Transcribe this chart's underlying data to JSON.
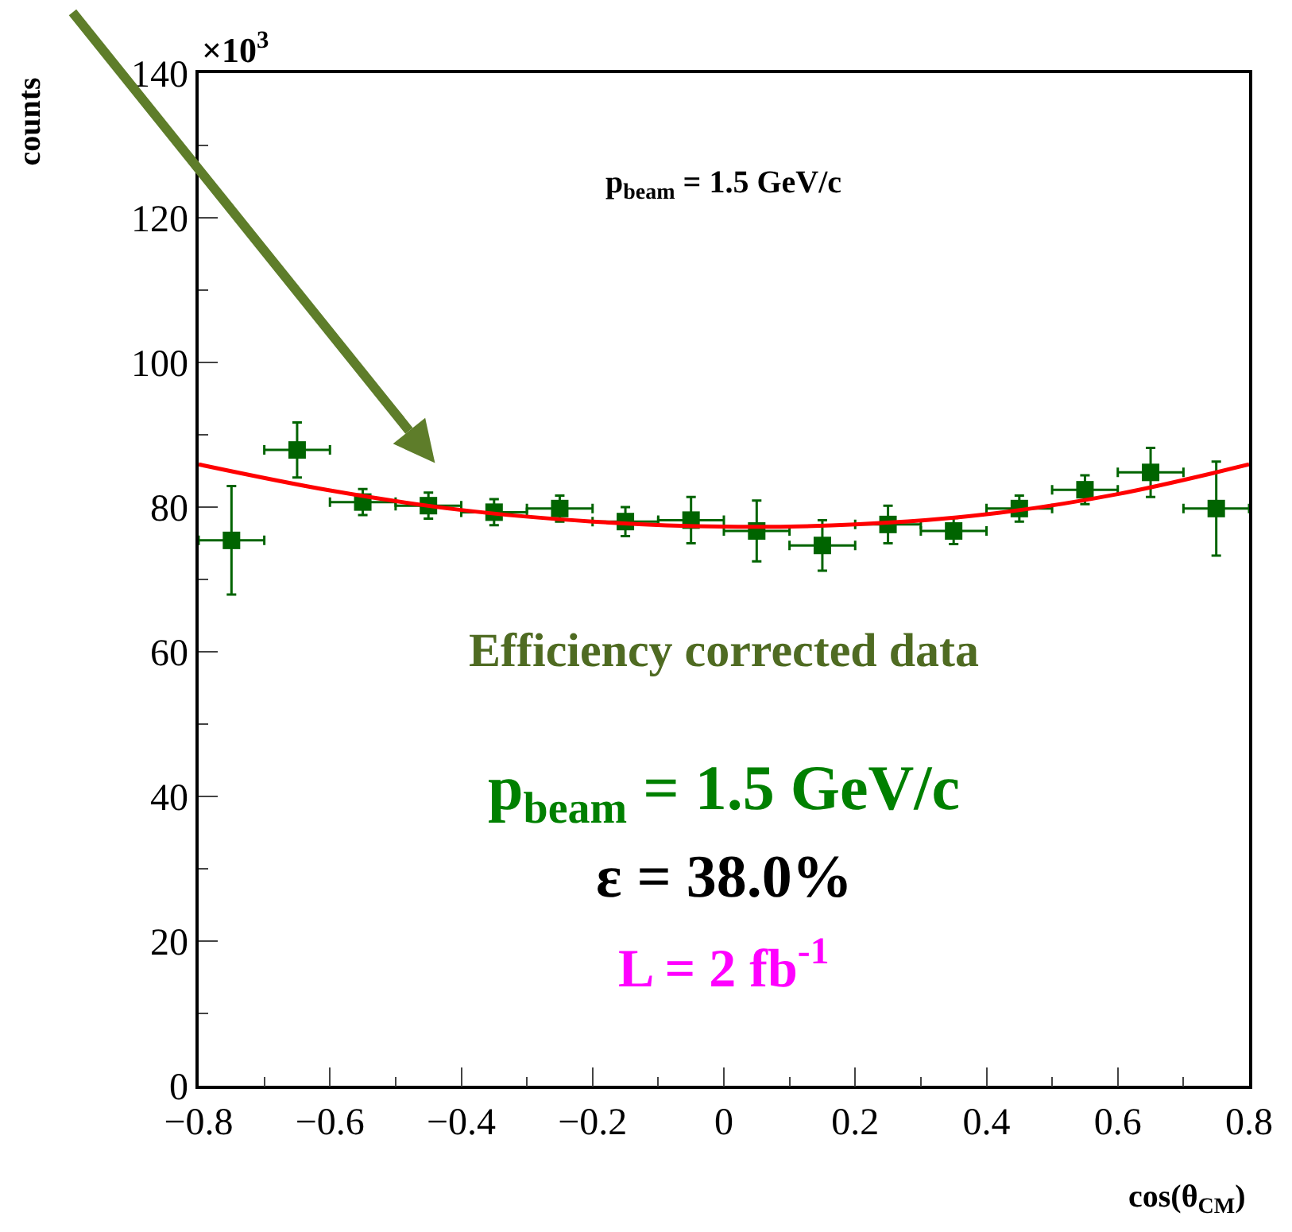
{
  "chart_data": {
    "type": "scatter",
    "xlabel": "cos(θ$_{CM}$)",
    "ylabel": "counts",
    "annotations": [
      "×10$^{3}$",
      "p$_{beam}$ = 1.5 GeV/c",
      "Efficiency corrected data",
      "p$_{beam}$ = 1.5 GeV/c",
      "ε = 38.0%",
      "L = 2 fb$^{-1}$"
    ],
    "x": [
      -0.75,
      -0.65,
      -0.55,
      -0.45,
      -0.35,
      -0.25,
      -0.15,
      -0.05,
      0.05,
      0.15,
      0.25,
      0.35,
      0.45,
      0.55,
      0.65,
      0.75
    ],
    "series": [
      {
        "color": "#006400",
        "marker": "square",
        "values": [
          75.4,
          87.9,
          80.7,
          80.2,
          79.3,
          79.8,
          78.0,
          78.2,
          76.7,
          74.7,
          77.6,
          76.7,
          79.8,
          82.4,
          84.8,
          79.8
        ],
        "errors": [
          7.5,
          3.8,
          1.8,
          1.8,
          1.8,
          1.8,
          2,
          3.2,
          4.2,
          3.5,
          2.6,
          1.8,
          1.8,
          2,
          3.4,
          6.5
        ],
        "xerrors": [
          0.05,
          0.05,
          0.05,
          0.05,
          0.05,
          0.05,
          0.05,
          0.05,
          0.05,
          0.05,
          0.05,
          0.05,
          0.05,
          0.05,
          0.05,
          0.05
        ]
      },
      {
        "type": "line",
        "color": "#ff0000",
        "marker": "none",
        "x": [
          -0.8,
          -0.6,
          -0.4,
          -0.2,
          0,
          0.2,
          0.4,
          0.6,
          0.8
        ],
        "values": [
          85.9,
          82.3,
          79.6,
          78.0,
          77.3,
          77.6,
          79.0,
          81.8,
          85.9
        ]
      }
    ],
    "xlim": [
      -0.8,
      0.8
    ],
    "xticks": [
      {
        "value": -0.8,
        "label": "−0.8"
      },
      {
        "value": -0.6,
        "label": "−0.6"
      },
      {
        "value": -0.4,
        "label": "−0.4"
      },
      {
        "value": -0.2,
        "label": "−0.2"
      },
      0,
      0.2,
      0.4,
      0.6,
      0.8
    ],
    "ylim": [
      0,
      140
    ],
    "yticks": [
      0,
      20,
      40,
      60,
      80,
      100,
      120,
      140
    ],
    "grid": false,
    "legend": false
  }
}
